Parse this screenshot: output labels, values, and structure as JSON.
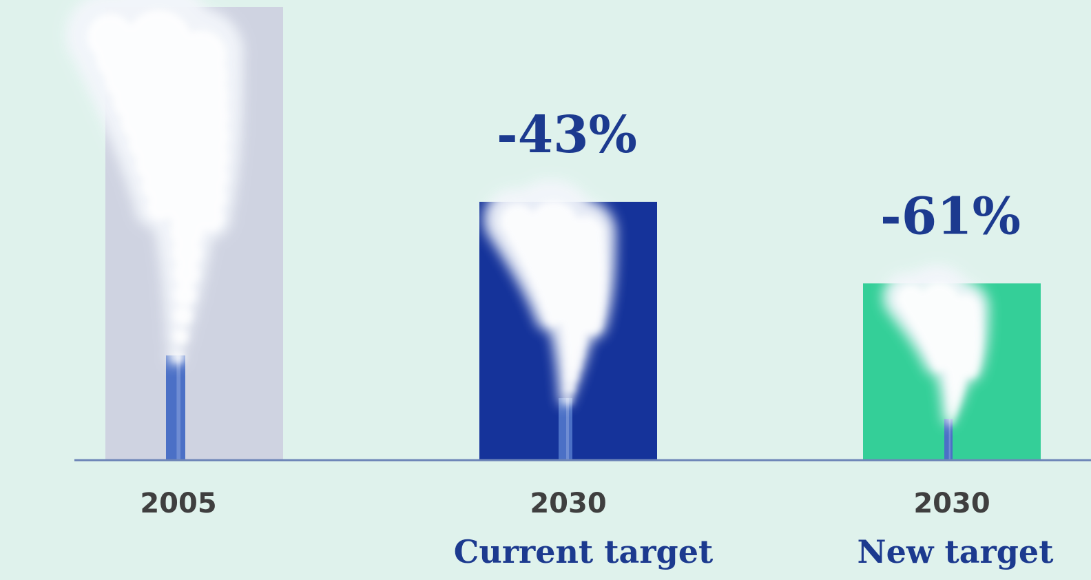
{
  "chart_data": {
    "type": "bar",
    "categories": [
      "2005",
      "2030",
      "2030"
    ],
    "sublabels": [
      "",
      "Current target",
      "New target"
    ],
    "values": [
      100,
      57,
      39
    ],
    "data_labels": [
      "",
      "-43%",
      "-61%"
    ],
    "ylim": [
      0,
      100
    ],
    "grid": false,
    "legend": "none",
    "title": "",
    "xlabel": "",
    "ylabel": ""
  },
  "colors": {
    "background": "#dff2ec",
    "bar_2005": "#cfd3e1",
    "bar_current": "#15339a",
    "bar_new": "#34cf98",
    "label_text": "#1c3a8f",
    "tick_text": "#3f3f3f",
    "axis": "#6e86b8",
    "chimney": "#4b70c6",
    "smoke": "#f3f6fb"
  },
  "icons": [
    "chimney-icon",
    "smoke-icon"
  ]
}
